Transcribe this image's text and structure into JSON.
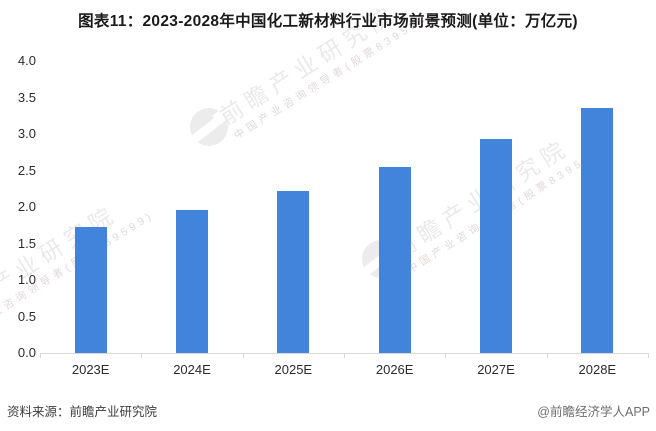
{
  "title": "图表11：2023-2028年中国化工新材料行业市场前景预测(单位：万亿元)",
  "footer": {
    "source": "资料来源：前瞻产业研究院",
    "credit": "@前瞻经济学人APP"
  },
  "watermark": {
    "main": "前瞻产业研究院",
    "sub": "中国产业咨询领导者(股票839599)"
  },
  "chart_data": {
    "type": "bar",
    "categories": [
      "2023E",
      "2024E",
      "2025E",
      "2026E",
      "2027E",
      "2028E"
    ],
    "values": [
      1.72,
      1.96,
      2.22,
      2.55,
      2.93,
      3.35
    ],
    "title": "图表11：2023-2028年中国化工新材料行业市场前景预测(单位：万亿元)",
    "unit": "万亿元",
    "xlabel": "",
    "ylabel": "",
    "ylim": [
      0.0,
      4.0
    ],
    "ytick_step": 0.5,
    "bar_color": "#4284DC",
    "grid": false,
    "legend_position": "none"
  }
}
